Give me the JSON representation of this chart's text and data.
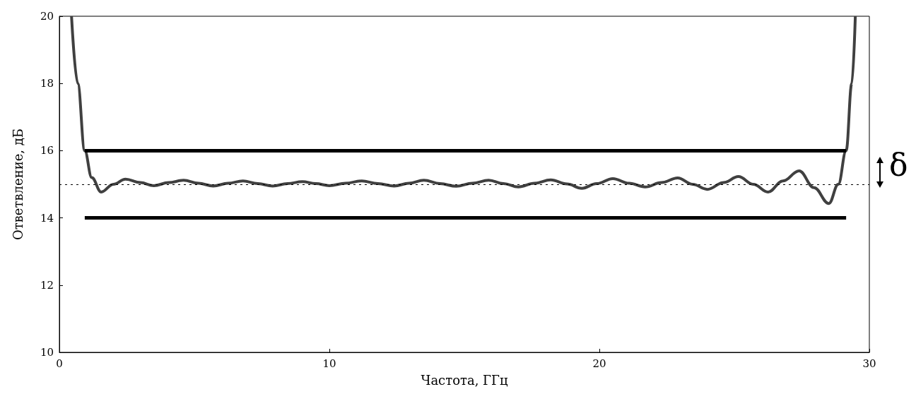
{
  "chart_data": {
    "type": "line",
    "xlabel": "Частота, ГГц",
    "ylabel": "Ответвление, дБ",
    "xlim": [
      0,
      30
    ],
    "ylim": [
      10,
      20
    ],
    "xticks": [
      0,
      10,
      20,
      30
    ],
    "yticks": [
      10,
      12,
      14,
      16,
      18,
      20
    ],
    "grid": false,
    "marker": "none",
    "series": [
      {
        "color": "#404040",
        "x": [
          0.45,
          0.68,
          0.94,
          1.2,
          1.55,
          2.0,
          2.45,
          3.0,
          3.5,
          4.05,
          4.6,
          5.15,
          5.7,
          6.25,
          6.8,
          7.35,
          7.9,
          8.45,
          9.0,
          9.5,
          10.0,
          10.6,
          11.2,
          11.8,
          12.4,
          12.95,
          13.5,
          14.1,
          14.7,
          15.3,
          15.9,
          16.45,
          17.0,
          17.6,
          18.2,
          18.8,
          19.35,
          19.9,
          20.5,
          21.1,
          21.7,
          22.3,
          22.9,
          23.45,
          24.0,
          24.6,
          25.15,
          25.7,
          26.25,
          26.8,
          27.4,
          27.95,
          28.5,
          28.85,
          29.14,
          29.35,
          29.48
        ],
        "values": [
          20,
          18,
          16,
          15.2,
          14.77,
          15.0,
          15.15,
          15.05,
          14.96,
          15.05,
          15.12,
          15.03,
          14.95,
          15.03,
          15.1,
          15.02,
          14.95,
          15.02,
          15.08,
          15.02,
          14.96,
          15.03,
          15.1,
          15.02,
          14.95,
          15.03,
          15.12,
          15.02,
          14.94,
          15.03,
          15.12,
          15.02,
          14.92,
          15.03,
          15.13,
          15.01,
          14.88,
          15.02,
          15.17,
          15.03,
          14.92,
          15.05,
          15.19,
          15.0,
          14.85,
          15.05,
          15.23,
          15.0,
          14.77,
          15.1,
          15.4,
          14.9,
          14.43,
          15.0,
          16,
          18,
          20
        ]
      },
      {
        "color": "#000000",
        "x": [
          0.94,
          29.14
        ],
        "values": [
          16,
          16
        ]
      },
      {
        "color": "#000000",
        "x": [
          0.94,
          29.14
        ],
        "values": [
          14,
          14
        ]
      }
    ],
    "ref_lines": [
      {
        "axis": "y",
        "value": 15,
        "line_style": "dotted",
        "color": "#000000"
      }
    ],
    "annotations": [
      "δ"
    ]
  }
}
